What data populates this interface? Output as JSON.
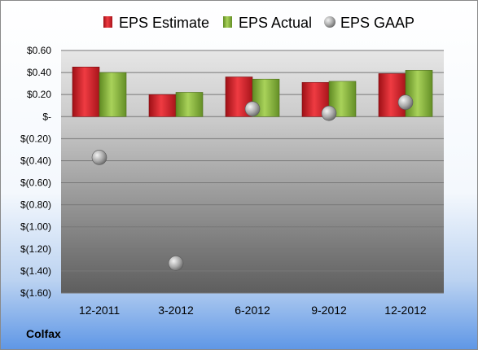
{
  "chart_data": {
    "type": "bar",
    "categories": [
      "12-2011",
      "3-2012",
      "6-2012",
      "9-2012",
      "12-2012"
    ],
    "series": [
      {
        "name": "EPS Estimate",
        "kind": "bar",
        "color": "#d0202a",
        "values": [
          0.45,
          0.2,
          0.36,
          0.31,
          0.39
        ]
      },
      {
        "name": "EPS Actual",
        "kind": "bar",
        "color": "#8db53e",
        "values": [
          0.4,
          0.22,
          0.34,
          0.32,
          0.42
        ]
      },
      {
        "name": "EPS GAAP",
        "kind": "marker",
        "color": "#a8a8a8",
        "values": [
          -0.37,
          -1.33,
          0.07,
          0.03,
          0.13
        ]
      }
    ],
    "y_ticks": [
      "$0.60",
      "$0.40",
      "$0.20",
      "$-",
      "$(0.20)",
      "$(0.40)",
      "$(0.60)",
      "$(0.80)",
      "$(1.00)",
      "$(1.20)",
      "$(1.40)",
      "$(1.60)"
    ],
    "ylim": [
      -1.6,
      0.6
    ],
    "grid": true,
    "legend_position": "top"
  },
  "footer": {
    "company": "Colfax"
  }
}
